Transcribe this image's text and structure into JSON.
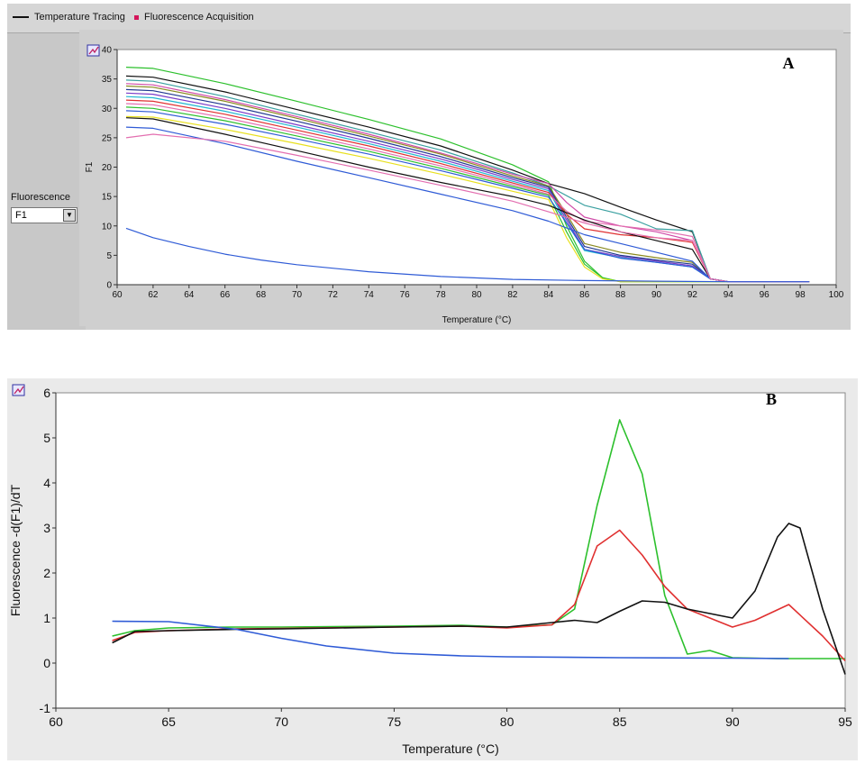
{
  "panel_a": {
    "legend": {
      "temperature_tracing": "Temperature Tracing",
      "fluorescence_acquisition": "Fluorescence Acquisition"
    },
    "fluorescence_selector": {
      "label": "Fluorescence",
      "value": "F1"
    },
    "plot_label": "A"
  },
  "panel_b": {
    "plot_label": "B"
  },
  "colors": {
    "green": "#2cc02c",
    "red": "#e03030",
    "black": "#111111",
    "blue": "#2f5bd6",
    "magenta": "#d04aa8",
    "teal": "#3aa0a0",
    "yellow": "#e8e020",
    "pink": "#e36fb0",
    "purple": "#7a3cc8",
    "cyan": "#20b8d0",
    "navy": "#203890",
    "olive": "#8a8a20"
  },
  "chart_data": [
    {
      "type": "line",
      "title": "",
      "xlabel": "Temperature (°C)",
      "ylabel": "F1",
      "xlim": [
        60,
        100
      ],
      "ylim": [
        0,
        40
      ],
      "xticks": [
        60,
        62,
        64,
        66,
        68,
        70,
        72,
        74,
        76,
        78,
        80,
        82,
        84,
        86,
        88,
        90,
        92,
        94,
        96,
        98,
        100
      ],
      "yticks": [
        0,
        5,
        10,
        15,
        20,
        25,
        30,
        35,
        40
      ],
      "series": [
        {
          "name": "green-high",
          "color": "green",
          "x": [
            60.5,
            62,
            66,
            70,
            74,
            78,
            82,
            84,
            85,
            86,
            87,
            88,
            92,
            94,
            98.5
          ],
          "y": [
            37,
            36.8,
            34.2,
            31.2,
            28.1,
            24.8,
            20.4,
            17.5,
            10,
            4,
            1.2,
            0.5,
            0.5,
            0.5,
            0.5
          ]
        },
        {
          "name": "black-top",
          "color": "black",
          "x": [
            60.5,
            62,
            66,
            70,
            74,
            78,
            82,
            84,
            86,
            88,
            90,
            92,
            93,
            94,
            98.5
          ],
          "y": [
            35.5,
            35.3,
            32.8,
            29.8,
            26.8,
            23.6,
            19.5,
            17.2,
            15.5,
            13.2,
            11,
            9,
            1,
            0.5,
            0.5
          ]
        },
        {
          "name": "teal-top",
          "color": "teal",
          "x": [
            60.5,
            62,
            66,
            70,
            74,
            78,
            82,
            84,
            86,
            88,
            90,
            92,
            93,
            94,
            98.5
          ],
          "y": [
            34.8,
            34.6,
            32,
            29,
            26,
            22.9,
            19,
            16.8,
            13.5,
            12,
            9.5,
            9.2,
            1,
            0.5,
            0.5
          ]
        },
        {
          "name": "magenta-1",
          "color": "magenta",
          "x": [
            60.5,
            62,
            66,
            70,
            74,
            78,
            82,
            84,
            85,
            86,
            88,
            90,
            92,
            93,
            94,
            98.5
          ],
          "y": [
            34.2,
            34,
            31.5,
            28.6,
            25.6,
            22.4,
            18.8,
            17.2,
            14,
            11.5,
            10,
            9,
            7.5,
            1,
            0.5,
            0.5
          ]
        },
        {
          "name": "olive-1",
          "color": "olive",
          "x": [
            60.5,
            62,
            66,
            70,
            74,
            78,
            82,
            84,
            85,
            86,
            88,
            90,
            92,
            93,
            94,
            98.5
          ],
          "y": [
            33.8,
            33.6,
            31.2,
            28.3,
            25.3,
            22.2,
            18.5,
            16.8,
            12,
            7,
            5.5,
            4.6,
            3.8,
            1,
            0.5,
            0.5
          ]
        },
        {
          "name": "navy-1",
          "color": "navy",
          "x": [
            60.5,
            62,
            66,
            70,
            74,
            78,
            82,
            84,
            85,
            86,
            88,
            90,
            92,
            93,
            94,
            98.5
          ],
          "y": [
            33.2,
            33,
            30.6,
            27.8,
            24.9,
            21.8,
            18.2,
            16.6,
            11.5,
            6.5,
            5,
            4.2,
            3.5,
            1,
            0.5,
            0.5
          ]
        },
        {
          "name": "purple-1",
          "color": "purple",
          "x": [
            60.5,
            62,
            66,
            70,
            74,
            78,
            82,
            84,
            85,
            86,
            88,
            90,
            92,
            93,
            94,
            98.5
          ],
          "y": [
            32.6,
            32.4,
            30,
            27.2,
            24.4,
            21.4,
            17.9,
            16.3,
            11,
            6,
            4.8,
            4,
            3.2,
            1,
            0.5,
            0.5
          ]
        },
        {
          "name": "cyan-1",
          "color": "cyan",
          "x": [
            60.5,
            62,
            66,
            70,
            74,
            78,
            82,
            84,
            85,
            86,
            88,
            90,
            92,
            93,
            94,
            98.5
          ],
          "y": [
            32,
            31.8,
            29.5,
            26.8,
            24,
            21,
            17.6,
            16,
            10.5,
            5.8,
            4.6,
            3.8,
            3,
            1,
            0.5,
            0.5
          ]
        },
        {
          "name": "red-1",
          "color": "red",
          "x": [
            60.5,
            62,
            66,
            70,
            74,
            78,
            82,
            84,
            85,
            86,
            88,
            90,
            92,
            93,
            94,
            98.5
          ],
          "y": [
            31.4,
            31.2,
            29,
            26.3,
            23.6,
            20.6,
            17.3,
            15.7,
            12,
            9.5,
            8.5,
            8,
            7.2,
            1,
            0.5,
            0.5
          ]
        },
        {
          "name": "pink-1",
          "color": "pink",
          "x": [
            60.5,
            62,
            66,
            70,
            74,
            78,
            82,
            84,
            85,
            86,
            88,
            90,
            92,
            93,
            94,
            98.5
          ],
          "y": [
            30.8,
            30.6,
            28.4,
            25.8,
            23.1,
            20.2,
            17,
            15.4,
            12.5,
            10.8,
            10,
            9.3,
            8.2,
            1,
            0.5,
            0.5
          ]
        },
        {
          "name": "green-2",
          "color": "green",
          "x": [
            60.5,
            62,
            66,
            70,
            74,
            78,
            82,
            84,
            85,
            86,
            87,
            88,
            92,
            94,
            98.5
          ],
          "y": [
            30.2,
            30,
            27.9,
            25.3,
            22.7,
            19.8,
            16.7,
            15.2,
            9,
            3.5,
            1.2,
            0.5,
            0.5,
            0.5,
            0.5
          ]
        },
        {
          "name": "blue-1",
          "color": "blue",
          "x": [
            60.5,
            62,
            66,
            70,
            74,
            78,
            82,
            84,
            85,
            86,
            88,
            90,
            92,
            93,
            94,
            98.5
          ],
          "y": [
            29.6,
            29.4,
            27.3,
            24.8,
            22.2,
            19.4,
            16.4,
            14.9,
            10.5,
            6,
            4.5,
            3.8,
            3,
            1,
            0.5,
            0.5
          ]
        },
        {
          "name": "yellow-1",
          "color": "yellow",
          "x": [
            60.5,
            62,
            66,
            70,
            74,
            78,
            82,
            84,
            85,
            86,
            87,
            88,
            92,
            94,
            98.5
          ],
          "y": [
            28.6,
            28.5,
            26.4,
            24,
            21.5,
            18.8,
            15.9,
            14.5,
            8,
            3,
            1,
            0.5,
            0.5,
            0.5,
            0.5
          ]
        },
        {
          "name": "black-2",
          "color": "black",
          "x": [
            60.5,
            62,
            66,
            70,
            74,
            78,
            82,
            84,
            86,
            88,
            90,
            92,
            93,
            94,
            98.5
          ],
          "y": [
            28.4,
            28.2,
            25.6,
            22.8,
            20,
            17.4,
            15,
            13.5,
            11,
            9,
            7.5,
            6,
            1,
            0.5,
            0.5
          ]
        },
        {
          "name": "blue-2",
          "color": "blue",
          "x": [
            60.5,
            62,
            66,
            70,
            74,
            78,
            82,
            84,
            86,
            88,
            90,
            92,
            93,
            94,
            98.5
          ],
          "y": [
            26.8,
            26.6,
            24,
            21,
            18.2,
            15.4,
            12.6,
            10.8,
            8.5,
            7,
            5.5,
            4,
            1,
            0.5,
            0.5
          ]
        },
        {
          "name": "pink-2",
          "color": "pink",
          "x": [
            60.5,
            62,
            66,
            70,
            74,
            78,
            82,
            84,
            86,
            88,
            90,
            92,
            93,
            94,
            98.5
          ],
          "y": [
            25,
            25.6,
            24.4,
            22,
            19.5,
            16.9,
            14.2,
            12.4,
            10.5,
            9,
            8,
            7.5,
            1,
            0.5,
            0.5
          ]
        },
        {
          "name": "blue-baseline",
          "color": "blue",
          "x": [
            60.5,
            62,
            64,
            66,
            68,
            70,
            74,
            78,
            82,
            86,
            90,
            94,
            98.5
          ],
          "y": [
            9.6,
            8,
            6.5,
            5.2,
            4.2,
            3.4,
            2.2,
            1.4,
            0.9,
            0.7,
            0.6,
            0.5,
            0.5
          ]
        }
      ]
    },
    {
      "type": "line",
      "title": "",
      "xlabel": "Temperature (°C)",
      "ylabel": "Fluorescence -d(F1)/dT",
      "xlim": [
        60,
        95
      ],
      "ylim": [
        -1,
        6
      ],
      "xticks": [
        60,
        65,
        70,
        75,
        80,
        85,
        90,
        95
      ],
      "yticks": [
        -1,
        0,
        1,
        2,
        3,
        4,
        5,
        6
      ],
      "series": [
        {
          "name": "green",
          "color": "green",
          "x": [
            62.5,
            63.5,
            65,
            68,
            70,
            75,
            78,
            80,
            82,
            83,
            84,
            85,
            86,
            87,
            88,
            89,
            90,
            92,
            95
          ],
          "y": [
            0.6,
            0.72,
            0.78,
            0.8,
            0.8,
            0.82,
            0.84,
            0.8,
            0.85,
            1.2,
            3.5,
            5.4,
            4.2,
            1.5,
            0.2,
            0.28,
            0.12,
            0.1,
            0.1
          ]
        },
        {
          "name": "red",
          "color": "red",
          "x": [
            62.5,
            63.5,
            65,
            68,
            70,
            75,
            78,
            80,
            82,
            83,
            84,
            85,
            86,
            87,
            88,
            90,
            91,
            92.5,
            94,
            95
          ],
          "y": [
            0.5,
            0.68,
            0.72,
            0.76,
            0.77,
            0.8,
            0.82,
            0.78,
            0.85,
            1.3,
            2.6,
            2.95,
            2.4,
            1.7,
            1.2,
            0.8,
            0.95,
            1.3,
            0.6,
            0.05
          ]
        },
        {
          "name": "black",
          "color": "black",
          "x": [
            62.5,
            63.5,
            65,
            68,
            70,
            75,
            78,
            80,
            82,
            83,
            84,
            85,
            86,
            87,
            88,
            90,
            91,
            92,
            92.5,
            93,
            94,
            95
          ],
          "y": [
            0.45,
            0.7,
            0.72,
            0.75,
            0.76,
            0.8,
            0.82,
            0.8,
            0.9,
            0.95,
            0.9,
            1.15,
            1.38,
            1.35,
            1.2,
            1.0,
            1.6,
            2.8,
            3.1,
            3.0,
            1.2,
            -0.25
          ]
        },
        {
          "name": "blue",
          "color": "blue",
          "x": [
            62.5,
            65,
            68,
            70,
            72,
            75,
            78,
            80,
            85,
            90,
            92.5
          ],
          "y": [
            0.93,
            0.92,
            0.75,
            0.55,
            0.38,
            0.22,
            0.16,
            0.14,
            0.12,
            0.11,
            0.1
          ]
        }
      ]
    }
  ]
}
